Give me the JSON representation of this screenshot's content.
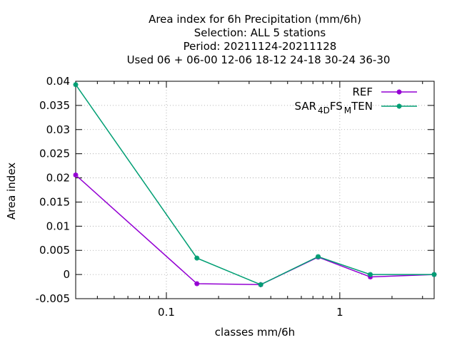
{
  "chart_data": {
    "type": "line",
    "title_lines": [
      "Area index  for 6h Precipitation (mm/6h)",
      "Selection: ALL      5 stations",
      "Period: 20211124-20211128",
      "Used  06 + 06-00 12-06 18-12 24-18 30-24 36-30"
    ],
    "xlabel": "classes mm/6h",
    "ylabel": "Area index",
    "x_scale": "log",
    "xlim": [
      0.03,
      3.5
    ],
    "ylim": [
      -0.005,
      0.04
    ],
    "grid": true,
    "legend_position": "top-right",
    "x_ticks": [
      {
        "value": 0.1,
        "label": "0.1"
      },
      {
        "value": 1,
        "label": "1"
      }
    ],
    "y_ticks": [
      {
        "value": 0.04,
        "label": "0.04"
      },
      {
        "value": 0.035,
        "label": "0.035"
      },
      {
        "value": 0.03,
        "label": "0.03"
      },
      {
        "value": 0.025,
        "label": "0.025"
      },
      {
        "value": 0.02,
        "label": "0.02"
      },
      {
        "value": 0.015,
        "label": "0.015"
      },
      {
        "value": 0.01,
        "label": "0.01"
      },
      {
        "value": 0.005,
        "label": "0.005"
      },
      {
        "value": 0,
        "label": "0"
      },
      {
        "value": -0.005,
        "label": "-0.005"
      }
    ],
    "x": [
      0.03,
      0.15,
      0.35,
      0.75,
      1.5,
      3.5
    ],
    "series": [
      {
        "name": "REF",
        "color": "#9400d3",
        "values": [
          0.0206,
          -0.0019,
          -0.0021,
          0.0036,
          -0.0005,
          0.0
        ]
      },
      {
        "name": "SAR4DFSMTEN",
        "legend_parts": [
          {
            "text": "SAR",
            "sub": false
          },
          {
            "text": "4D",
            "sub": true
          },
          {
            "text": "FS",
            "sub": false
          },
          {
            "text": "M",
            "sub": true
          },
          {
            "text": "TEN",
            "sub": false
          }
        ],
        "color": "#009e73",
        "values": [
          0.0393,
          0.0034,
          -0.0021,
          0.0037,
          0.0,
          0.0
        ]
      }
    ]
  }
}
